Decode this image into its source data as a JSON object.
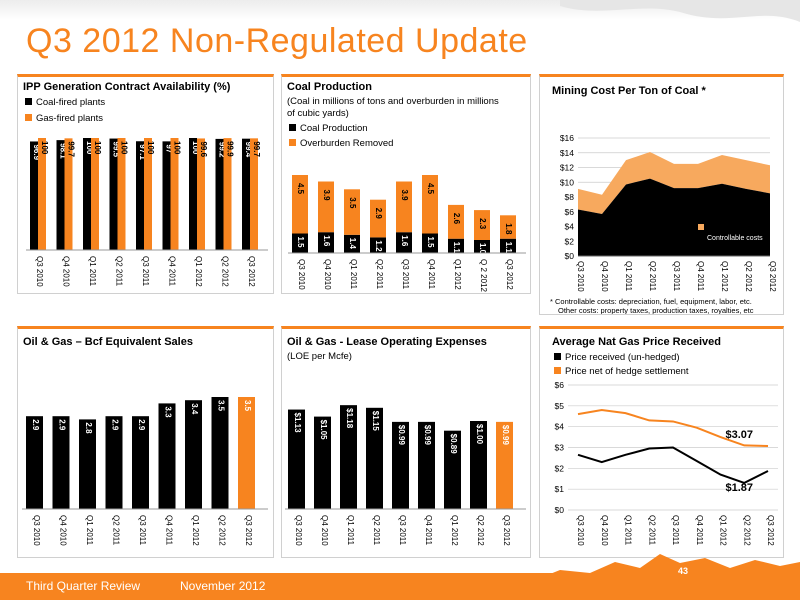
{
  "page": {
    "title": "Q3 2012 Non-Regulated Update",
    "footer_left": "Third Quarter Review",
    "footer_date": "November 2012",
    "page_number": "43",
    "colors": {
      "accent": "#f7841f",
      "dark": "#000000",
      "grid": "#cccccc"
    }
  },
  "chart_data": [
    {
      "id": "ipp",
      "type": "bar",
      "title": "IPP Generation Contract Availability (%)",
      "categories": [
        "Q3 2010",
        "Q4 2010",
        "Q1 2011",
        "Q2 2011",
        "Q3 2011",
        "Q4 2011",
        "Q1 2012",
        "Q2 2012",
        "Q3 2012"
      ],
      "series": [
        {
          "name": "Coal-fired plants",
          "color": "#000000",
          "values": [
            96.9,
            98.1,
            100,
            99.5,
            97.1,
            97,
            100,
            99.2,
            99.4
          ]
        },
        {
          "name": "Gas-fired plants",
          "color": "#f7841f",
          "values": [
            100,
            99.7,
            100,
            100,
            100,
            100,
            99.6,
            99.9,
            99.7
          ]
        }
      ],
      "value_labels": [
        [
          "96.9",
          "98.1",
          "100",
          "99.5",
          "97.1",
          "97",
          "100",
          "99.2",
          "99.4"
        ],
        [
          "100",
          "99.7",
          "100",
          "100",
          "100",
          "100",
          "99.6",
          "99.9",
          "99.7"
        ]
      ],
      "legend_position": "top-left"
    },
    {
      "id": "coal",
      "type": "bar",
      "stacked": true,
      "title": "Coal Production",
      "subtitle": "(Coal in millions of tons and overburden in millions of cubic yards)",
      "categories": [
        "Q3 2010",
        "Q4 2010",
        "Q1 2011",
        "Q2 2011",
        "Q3 2011",
        "Q4 2011",
        "Q1 2012",
        "Q 2 2012",
        "Q3 2012"
      ],
      "series": [
        {
          "name": "Coal Production",
          "color": "#000000",
          "values": [
            1.5,
            1.6,
            1.4,
            1.2,
            1.6,
            1.5,
            1.1,
            1.0,
            1.1
          ]
        },
        {
          "name": "Overburden Removed",
          "color": "#f7841f",
          "values": [
            4.5,
            3.9,
            3.5,
            2.9,
            3.9,
            4.5,
            2.6,
            2.3,
            1.8
          ]
        }
      ],
      "value_labels": [
        [
          "1.5",
          "1.6",
          "1.4",
          "1.2",
          "1.6",
          "1.5",
          "1.1",
          "1.0",
          "1.1"
        ],
        [
          "4.5",
          "3.9",
          "3.5",
          "2.9",
          "3.9",
          "4.5",
          "2.6",
          "2.3",
          "1.8"
        ]
      ],
      "legend_position": "top-left"
    },
    {
      "id": "mining",
      "type": "area",
      "stacked": true,
      "title": "Mining Cost Per Ton of Coal *",
      "categories": [
        "Q3 2010",
        "Q4 2010",
        "Q1 2011",
        "Q2 2011",
        "Q3 2011",
        "Q4 2011",
        "Q1 2012",
        "Q2 2012",
        "Q3 2012"
      ],
      "series": [
        {
          "name": "Controllable costs",
          "color": "#000000",
          "values": [
            6.3,
            5.7,
            9.7,
            10.5,
            9.2,
            9.2,
            9.8,
            9.1,
            8.5
          ]
        },
        {
          "name": "Other costs",
          "color": "#f7a95e",
          "values": [
            2.8,
            2.6,
            3.3,
            3.6,
            3.3,
            3.3,
            3.9,
            3.9,
            3.8
          ]
        }
      ],
      "yticks": [
        "$0",
        "$2",
        "$4",
        "$6",
        "$8",
        "$10",
        "$12",
        "$14",
        "$16"
      ],
      "ylim": [
        0,
        16
      ],
      "grid": true,
      "legend_position": "bottom-right",
      "footnote_1": "* Controllable costs: depreciation, fuel, equipment, labor, etc.",
      "footnote_2": "Other costs: property taxes, production taxes, royalties, etc"
    },
    {
      "id": "oilgas",
      "type": "bar",
      "title": "Oil & Gas – Bcf Equivalent Sales",
      "categories": [
        "Q3 2010",
        "Q4 2010",
        "Q1 2011",
        "Q2 2011",
        "Q3 2011",
        "Q4 2011",
        "Q1 2012",
        "Q2 2012",
        "Q3 2012"
      ],
      "values": [
        2.9,
        2.9,
        2.8,
        2.9,
        2.9,
        3.3,
        3.4,
        3.5,
        3.5
      ],
      "value_labels": [
        "2.9",
        "2.9",
        "2.8",
        "2.9",
        "2.9",
        "3.3",
        "3.4",
        "3.5",
        "3.5"
      ],
      "colors": [
        "#000000",
        "#000000",
        "#000000",
        "#000000",
        "#000000",
        "#000000",
        "#000000",
        "#000000",
        "#f7841f"
      ]
    },
    {
      "id": "loe",
      "type": "bar",
      "title": "Oil & Gas - Lease Operating Expenses",
      "subtitle": "(LOE per Mcfe)",
      "categories": [
        "Q3 2010",
        "Q4 2010",
        "Q1 2011",
        "Q2 2011",
        "Q3 2011",
        "Q4 2011",
        "Q1 2012",
        "Q2 2012",
        "Q3 2012"
      ],
      "values": [
        1.13,
        1.05,
        1.18,
        1.15,
        0.99,
        0.99,
        0.89,
        1.0,
        0.99
      ],
      "value_labels": [
        "$1.13",
        "$1.05",
        "$1.18",
        "$1.15",
        "$0.99",
        "$0.99",
        "$0.89",
        "$1.00",
        "$0.99"
      ],
      "colors": [
        "#000000",
        "#000000",
        "#000000",
        "#000000",
        "#000000",
        "#000000",
        "#000000",
        "#000000",
        "#f7841f"
      ]
    },
    {
      "id": "natgas",
      "type": "line",
      "title": "Average Nat Gas Price Received",
      "categories": [
        "Q3 2010",
        "Q4 2010",
        "Q1 2011",
        "Q2 2011",
        "Q3 2011",
        "Q4 2011",
        "Q1 2012",
        "Q2 2012",
        "Q3 2012"
      ],
      "series": [
        {
          "name": "Price received (un-hedged)",
          "color": "#000000",
          "values": [
            2.65,
            2.3,
            2.65,
            2.95,
            3.0,
            2.35,
            1.7,
            1.3,
            1.87
          ]
        },
        {
          "name": "Price net of hedge settlement",
          "color": "#f7841f",
          "values": [
            4.6,
            4.8,
            4.65,
            4.3,
            4.25,
            3.95,
            3.5,
            3.1,
            3.07
          ]
        }
      ],
      "yticks": [
        "$0",
        "$1",
        "$2",
        "$3",
        "$4",
        "$5",
        "$6"
      ],
      "ylim": [
        0,
        6
      ],
      "grid": true,
      "annotations": [
        "$3.07",
        "$1.87"
      ],
      "legend_position": "top-left"
    }
  ]
}
